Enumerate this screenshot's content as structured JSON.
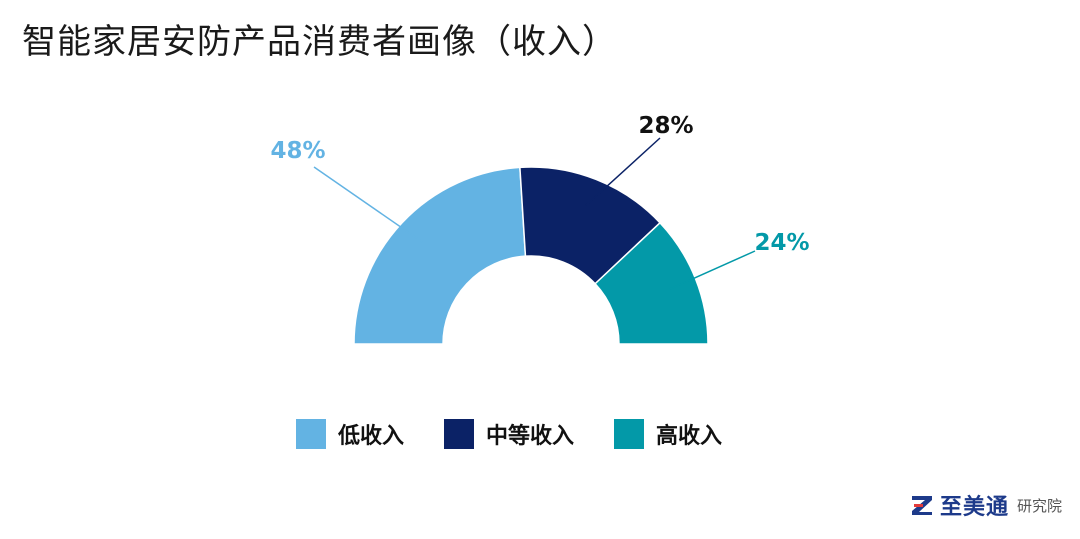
{
  "title": "智能家居安防产品消费者画像（收入）",
  "colors": {
    "low": "#63b3e3",
    "mid": "#0b2266",
    "high": "#0399a8"
  },
  "chart_data": {
    "type": "pie",
    "shape": "half-donut",
    "categories": [
      "低收入",
      "中等收入",
      "高收入"
    ],
    "values": [
      48,
      28,
      24
    ],
    "labels": [
      "48%",
      "28%",
      "24%"
    ]
  },
  "brand": {
    "name": "至美通",
    "sub": "研究院"
  }
}
